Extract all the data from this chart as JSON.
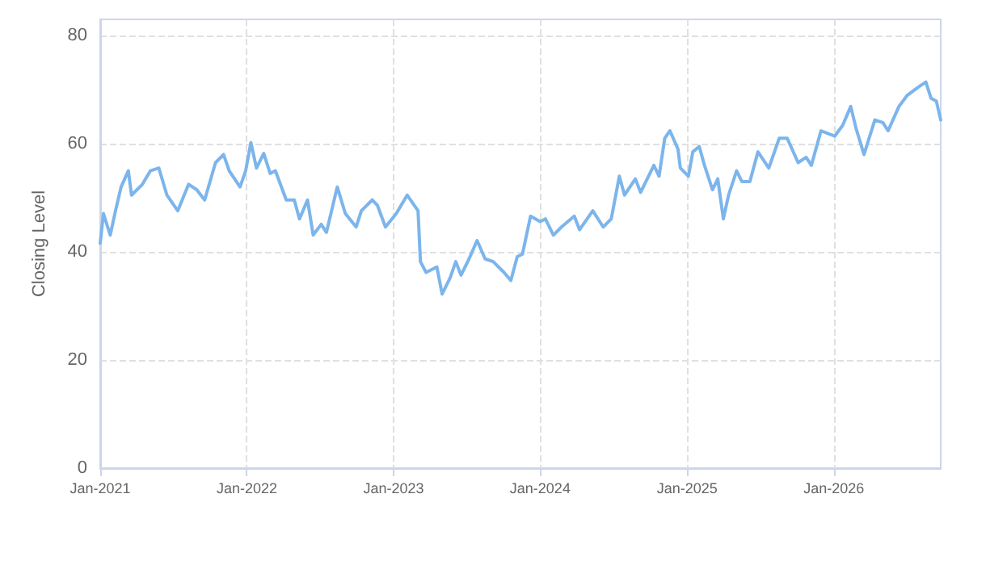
{
  "chart_data": {
    "type": "line",
    "ylabel": "Closing Level",
    "xlim": [
      "2021-01-01",
      "2026-09-24"
    ],
    "ylim": [
      0,
      83
    ],
    "yticks": [
      0,
      20,
      40,
      60,
      80
    ],
    "xticks": [
      {
        "value": "2021-01-01",
        "label": "Jan-2021"
      },
      {
        "value": "2022-01-01",
        "label": "Jan-2022"
      },
      {
        "value": "2023-01-01",
        "label": "Jan-2023"
      },
      {
        "value": "2024-01-01",
        "label": "Jan-2024"
      },
      {
        "value": "2025-01-01",
        "label": "Jan-2025"
      },
      {
        "value": "2026-01-01",
        "label": "Jan-2026"
      }
    ],
    "grid": true,
    "marker": "none",
    "line_style": "solid",
    "series": [
      {
        "color": "#7cb5ec",
        "x": [
          "2021-01-01",
          "2021-01-09",
          "2021-01-26",
          "2021-02-08",
          "2021-02-22",
          "2021-03-12",
          "2021-03-20",
          "2021-04-16",
          "2021-05-06",
          "2021-05-27",
          "2021-06-16",
          "2021-07-13",
          "2021-08-09",
          "2021-08-29",
          "2021-09-18",
          "2021-10-15",
          "2021-11-04",
          "2021-11-18",
          "2021-12-15",
          "2021-12-29",
          "2022-01-11",
          "2022-01-25",
          "2022-02-12",
          "2022-02-28",
          "2022-03-13",
          "2022-04-09",
          "2022-04-29",
          "2022-05-12",
          "2022-06-01",
          "2022-06-15",
          "2022-07-05",
          "2022-07-18",
          "2022-08-14",
          "2022-09-03",
          "2022-09-30",
          "2022-10-13",
          "2022-11-09",
          "2022-11-22",
          "2022-12-12",
          "2023-01-08",
          "2023-02-04",
          "2023-03-03",
          "2023-03-09",
          "2023-03-23",
          "2023-04-19",
          "2023-05-02",
          "2023-05-22",
          "2023-06-05",
          "2023-06-18",
          "2023-07-08",
          "2023-07-28",
          "2023-08-17",
          "2023-09-06",
          "2023-10-03",
          "2023-10-20",
          "2023-11-05",
          "2023-11-18",
          "2023-12-08",
          "2024-01-01",
          "2024-01-14",
          "2024-02-03",
          "2024-02-23",
          "2024-03-26",
          "2024-04-08",
          "2024-05-11",
          "2024-06-06",
          "2024-06-26",
          "2024-07-16",
          "2024-07-29",
          "2024-08-25",
          "2024-09-07",
          "2024-10-10",
          "2024-10-23",
          "2024-11-06",
          "2024-11-19",
          "2024-12-09",
          "2024-12-15",
          "2025-01-04",
          "2025-01-15",
          "2025-01-31",
          "2025-02-13",
          "2025-03-05",
          "2025-03-18",
          "2025-04-01",
          "2025-04-14",
          "2025-05-04",
          "2025-05-17",
          "2025-06-06",
          "2025-06-26",
          "2025-07-23",
          "2025-08-18",
          "2025-09-07",
          "2025-10-04",
          "2025-10-24",
          "2025-11-06",
          "2025-11-30",
          "2026-01-03",
          "2026-01-23",
          "2026-02-12",
          "2026-02-25",
          "2026-03-17",
          "2026-04-13",
          "2026-05-03",
          "2026-05-16",
          "2026-06-12",
          "2026-07-02",
          "2026-07-29",
          "2026-08-18",
          "2026-08-31",
          "2026-09-13",
          "2026-09-24"
        ],
        "values": [
          41.6,
          47.1,
          43.1,
          47.6,
          52,
          55,
          50.5,
          52.5,
          55,
          55.5,
          50.5,
          47.6,
          52.5,
          51.5,
          49.6,
          56.5,
          58,
          55,
          52,
          55,
          60.2,
          55.5,
          58.2,
          54.5,
          55,
          49.6,
          49.6,
          46.1,
          49.6,
          43.1,
          45.1,
          43.6,
          52,
          47.1,
          44.6,
          47.6,
          49.6,
          48.6,
          44.6,
          47.1,
          50.5,
          47.6,
          38.2,
          36.2,
          37.2,
          32.2,
          35.2,
          38.2,
          35.7,
          38.7,
          42.1,
          38.7,
          38.2,
          36.2,
          34.7,
          39.1,
          39.6,
          46.6,
          45.6,
          46.1,
          43.1,
          44.6,
          46.6,
          44.1,
          47.6,
          44.6,
          46.1,
          54,
          50.5,
          53.5,
          51,
          56,
          54,
          61,
          62.4,
          59,
          55.5,
          54,
          58.5,
          59.5,
          56,
          51.5,
          53.5,
          46.1,
          50.5,
          55,
          53,
          53,
          58.5,
          55.5,
          61,
          61,
          56.5,
          57.5,
          56,
          62.4,
          61.4,
          63.4,
          66.9,
          62.9,
          58,
          64.4,
          63.9,
          62.4,
          66.9,
          68.9,
          70.4,
          71.4,
          68.4,
          67.9,
          64.4
        ]
      }
    ]
  }
}
